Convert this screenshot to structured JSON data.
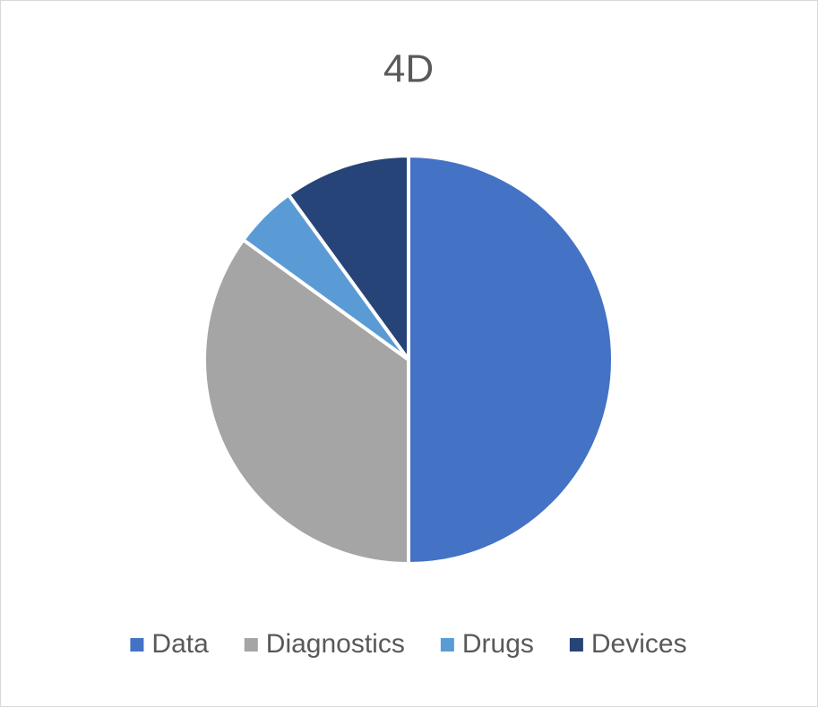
{
  "chart_data": {
    "type": "pie",
    "title": "4D",
    "categories": [
      "Data",
      "Diagnostics",
      "Drugs",
      "Devices"
    ],
    "values": [
      50,
      35,
      5,
      10
    ],
    "colors": [
      "#4472c4",
      "#a5a5a5",
      "#5b9bd5",
      "#264478"
    ],
    "legend": "bottom"
  }
}
